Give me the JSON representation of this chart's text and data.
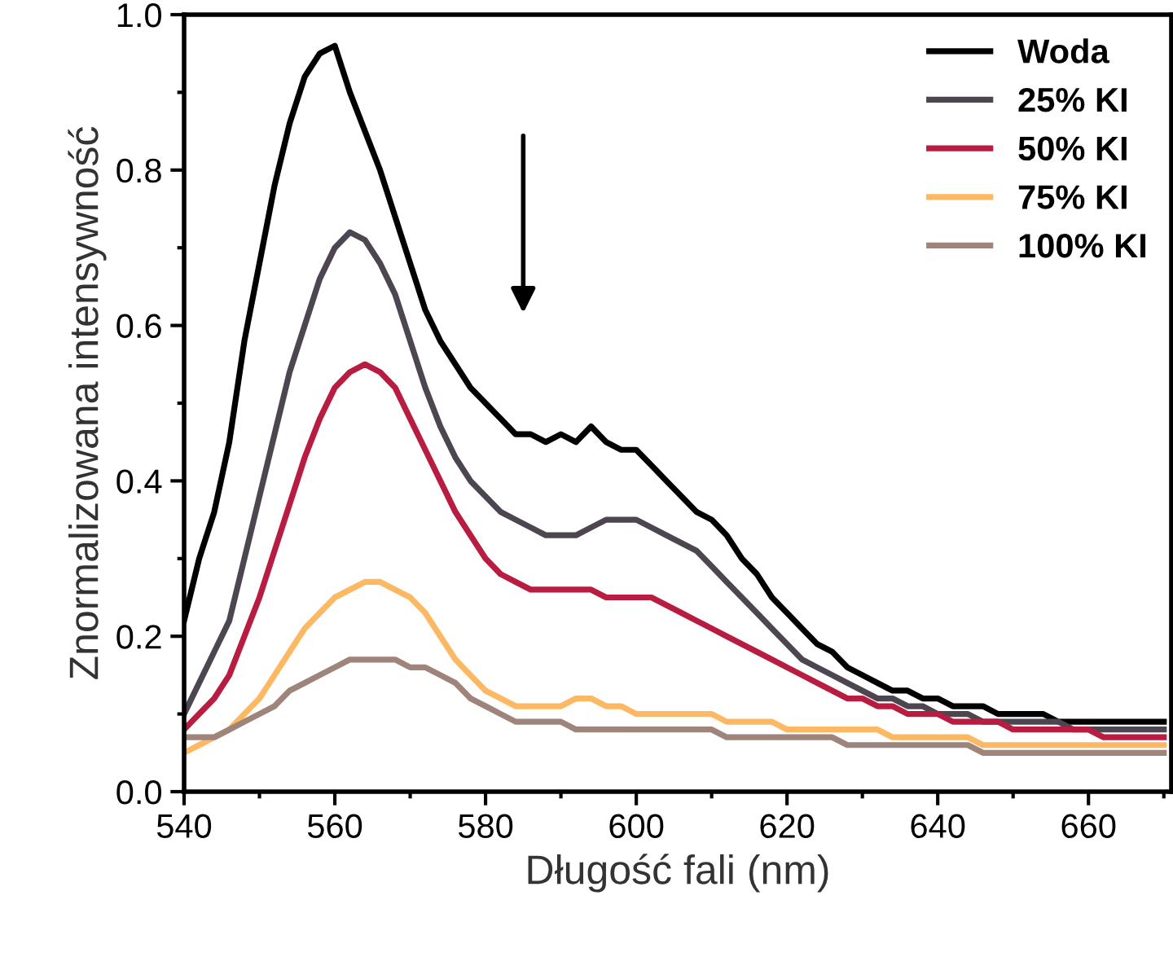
{
  "chart_data": {
    "type": "line",
    "xlabel": "Długość fali (nm)",
    "ylabel": "Znormalizowana intensywność",
    "x": [
      540,
      542,
      544,
      546,
      548,
      550,
      552,
      554,
      556,
      558,
      560,
      562,
      564,
      566,
      568,
      570,
      572,
      574,
      576,
      578,
      580,
      582,
      584,
      586,
      588,
      590,
      592,
      594,
      596,
      598,
      600,
      602,
      604,
      606,
      608,
      610,
      612,
      614,
      616,
      618,
      620,
      622,
      624,
      626,
      628,
      630,
      632,
      634,
      636,
      638,
      640,
      642,
      644,
      646,
      648,
      650,
      652,
      654,
      656,
      658,
      660,
      662,
      664,
      666,
      668,
      670
    ],
    "series": [
      {
        "name": "Woda",
        "color": "#000000",
        "values": [
          0.22,
          0.3,
          0.36,
          0.45,
          0.58,
          0.68,
          0.78,
          0.86,
          0.92,
          0.95,
          0.96,
          0.9,
          0.85,
          0.8,
          0.74,
          0.68,
          0.62,
          0.58,
          0.55,
          0.52,
          0.5,
          0.48,
          0.46,
          0.46,
          0.45,
          0.46,
          0.45,
          0.47,
          0.45,
          0.44,
          0.44,
          0.42,
          0.4,
          0.38,
          0.36,
          0.35,
          0.33,
          0.3,
          0.28,
          0.25,
          0.23,
          0.21,
          0.19,
          0.18,
          0.16,
          0.15,
          0.14,
          0.13,
          0.13,
          0.12,
          0.12,
          0.11,
          0.11,
          0.11,
          0.1,
          0.1,
          0.1,
          0.1,
          0.09,
          0.09,
          0.09,
          0.09,
          0.09,
          0.09,
          0.09,
          0.09
        ]
      },
      {
        "name": "25% KI",
        "color": "#4d4650",
        "values": [
          0.1,
          0.14,
          0.18,
          0.22,
          0.3,
          0.38,
          0.46,
          0.54,
          0.6,
          0.66,
          0.7,
          0.72,
          0.71,
          0.68,
          0.64,
          0.58,
          0.52,
          0.47,
          0.43,
          0.4,
          0.38,
          0.36,
          0.35,
          0.34,
          0.33,
          0.33,
          0.33,
          0.34,
          0.35,
          0.35,
          0.35,
          0.34,
          0.33,
          0.32,
          0.31,
          0.29,
          0.27,
          0.25,
          0.23,
          0.21,
          0.19,
          0.17,
          0.16,
          0.15,
          0.14,
          0.13,
          0.12,
          0.12,
          0.11,
          0.11,
          0.1,
          0.1,
          0.1,
          0.09,
          0.09,
          0.09,
          0.09,
          0.09,
          0.09,
          0.08,
          0.08,
          0.08,
          0.08,
          0.08,
          0.08,
          0.08
        ]
      },
      {
        "name": "50% KI",
        "color": "#b81c40",
        "values": [
          0.08,
          0.1,
          0.12,
          0.15,
          0.2,
          0.25,
          0.31,
          0.37,
          0.43,
          0.48,
          0.52,
          0.54,
          0.55,
          0.54,
          0.52,
          0.48,
          0.44,
          0.4,
          0.36,
          0.33,
          0.3,
          0.28,
          0.27,
          0.26,
          0.26,
          0.26,
          0.26,
          0.26,
          0.25,
          0.25,
          0.25,
          0.25,
          0.24,
          0.23,
          0.22,
          0.21,
          0.2,
          0.19,
          0.18,
          0.17,
          0.16,
          0.15,
          0.14,
          0.13,
          0.12,
          0.12,
          0.11,
          0.11,
          0.1,
          0.1,
          0.1,
          0.09,
          0.09,
          0.09,
          0.09,
          0.08,
          0.08,
          0.08,
          0.08,
          0.08,
          0.08,
          0.07,
          0.07,
          0.07,
          0.07,
          0.07
        ]
      },
      {
        "name": "75% KI",
        "color": "#fdb863",
        "values": [
          0.05,
          0.06,
          0.07,
          0.08,
          0.1,
          0.12,
          0.15,
          0.18,
          0.21,
          0.23,
          0.25,
          0.26,
          0.27,
          0.27,
          0.26,
          0.25,
          0.23,
          0.2,
          0.17,
          0.15,
          0.13,
          0.12,
          0.11,
          0.11,
          0.11,
          0.11,
          0.12,
          0.12,
          0.11,
          0.11,
          0.1,
          0.1,
          0.1,
          0.1,
          0.1,
          0.1,
          0.09,
          0.09,
          0.09,
          0.09,
          0.08,
          0.08,
          0.08,
          0.08,
          0.08,
          0.08,
          0.08,
          0.07,
          0.07,
          0.07,
          0.07,
          0.07,
          0.07,
          0.06,
          0.06,
          0.06,
          0.06,
          0.06,
          0.06,
          0.06,
          0.06,
          0.06,
          0.06,
          0.06,
          0.06,
          0.06
        ]
      },
      {
        "name": "100% KI",
        "color": "#9e847a",
        "values": [
          0.07,
          0.07,
          0.07,
          0.08,
          0.09,
          0.1,
          0.11,
          0.13,
          0.14,
          0.15,
          0.16,
          0.17,
          0.17,
          0.17,
          0.17,
          0.16,
          0.16,
          0.15,
          0.14,
          0.12,
          0.11,
          0.1,
          0.09,
          0.09,
          0.09,
          0.09,
          0.08,
          0.08,
          0.08,
          0.08,
          0.08,
          0.08,
          0.08,
          0.08,
          0.08,
          0.08,
          0.07,
          0.07,
          0.07,
          0.07,
          0.07,
          0.07,
          0.07,
          0.07,
          0.06,
          0.06,
          0.06,
          0.06,
          0.06,
          0.06,
          0.06,
          0.06,
          0.06,
          0.05,
          0.05,
          0.05,
          0.05,
          0.05,
          0.05,
          0.05,
          0.05,
          0.05,
          0.05,
          0.05,
          0.05,
          0.05
        ]
      }
    ],
    "xlim": [
      540,
      671
    ],
    "xticks": [
      540,
      560,
      580,
      600,
      620,
      640,
      660
    ],
    "ylim": [
      0,
      1.0
    ],
    "yticks": [
      {
        "value": 0,
        "label": "0.0"
      },
      {
        "value": 0.2,
        "label": "0.2"
      },
      {
        "value": 0.4,
        "label": "0.4"
      },
      {
        "value": 0.6,
        "label": "0.6"
      },
      {
        "value": 0.8,
        "label": "0.8"
      },
      {
        "value": 1.0,
        "label": "1.0"
      }
    ],
    "grid": false,
    "legend": "top right",
    "line_style": "solid",
    "marker": "none"
  }
}
